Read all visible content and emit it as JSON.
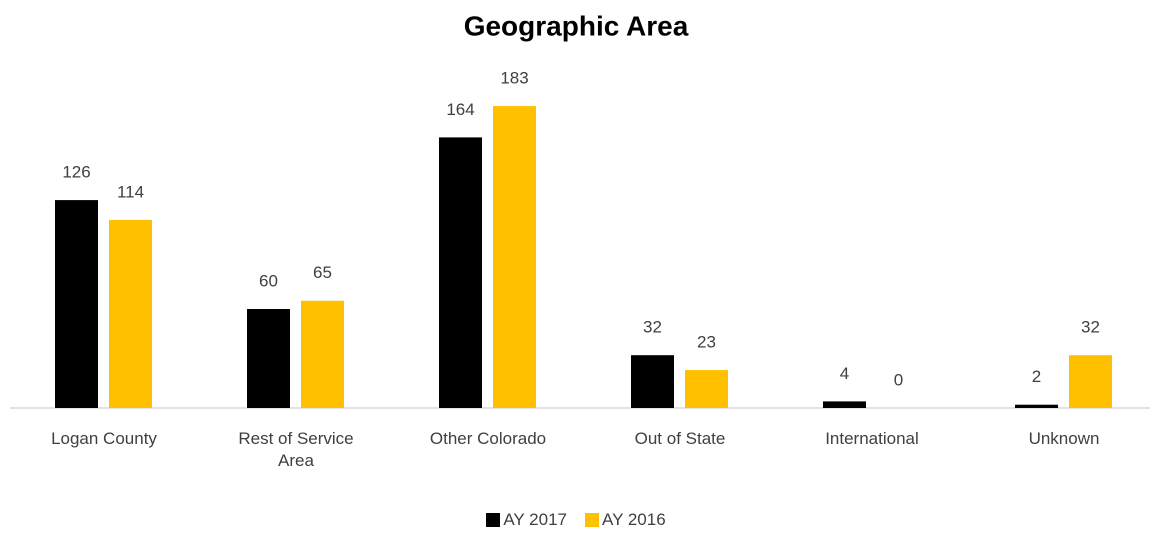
{
  "chart_data": {
    "type": "bar",
    "title": "Geographic Area",
    "categories": [
      "Logan County",
      "Rest of Service Area",
      "Other Colorado",
      "Out of State",
      "International",
      "Unknown"
    ],
    "series": [
      {
        "name": "AY 2017",
        "color": "#000000",
        "values": [
          126,
          60,
          164,
          32,
          4,
          2
        ]
      },
      {
        "name": "AY 2016",
        "color": "#ffc000",
        "values": [
          114,
          65,
          183,
          23,
          0,
          32
        ]
      }
    ],
    "ylim": [
      0,
      200
    ],
    "legend": "bottom"
  }
}
